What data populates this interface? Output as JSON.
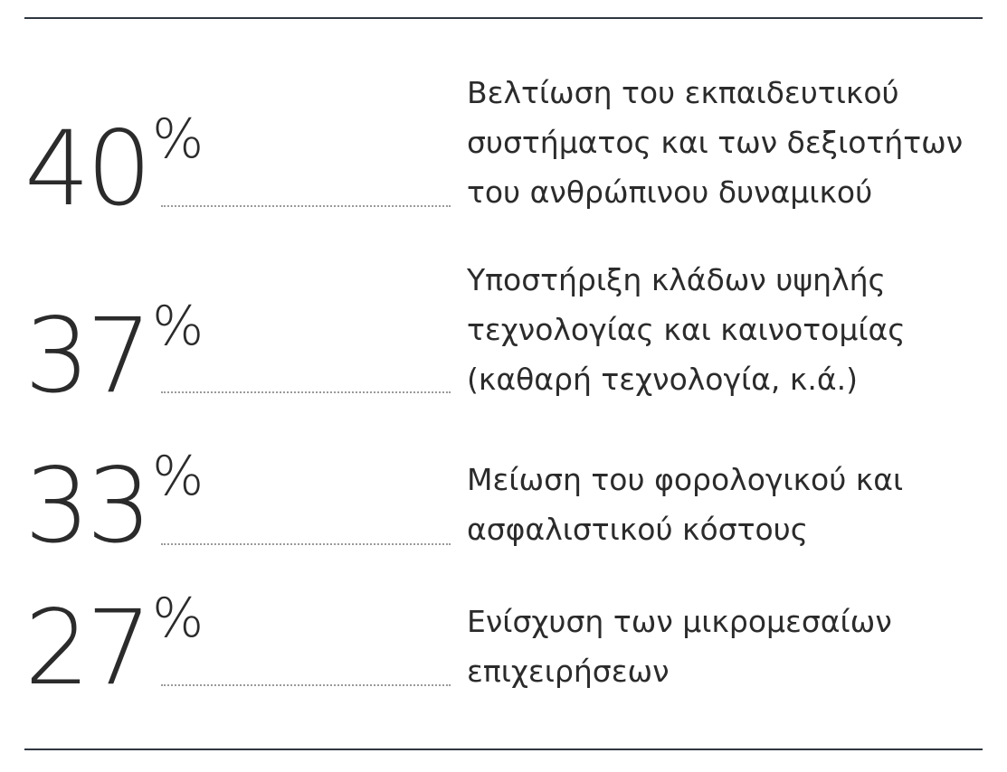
{
  "chart_data": {
    "type": "table",
    "rows": [
      {
        "value": "40",
        "unit": "%",
        "label": "Βελτίωση του εκπαιδευτικού\nσυστήματος και των δεξιοτήτων\nτου ανθρώπινου δυναμικού"
      },
      {
        "value": "37",
        "unit": "%",
        "label": "Υποστήριξη κλάδων υψηλής\nτεχνολογίας και καινοτομίας\n(καθαρή τεχνολογία, κ.ά.)"
      },
      {
        "value": "33",
        "unit": "%",
        "label": "Μείωση του φορολογικού και\nασφαλιστικού κόστους"
      },
      {
        "value": "27",
        "unit": "%",
        "label": "Ενίσχυση των μικρομεσαίων\nεπιχειρήσεων"
      }
    ]
  }
}
